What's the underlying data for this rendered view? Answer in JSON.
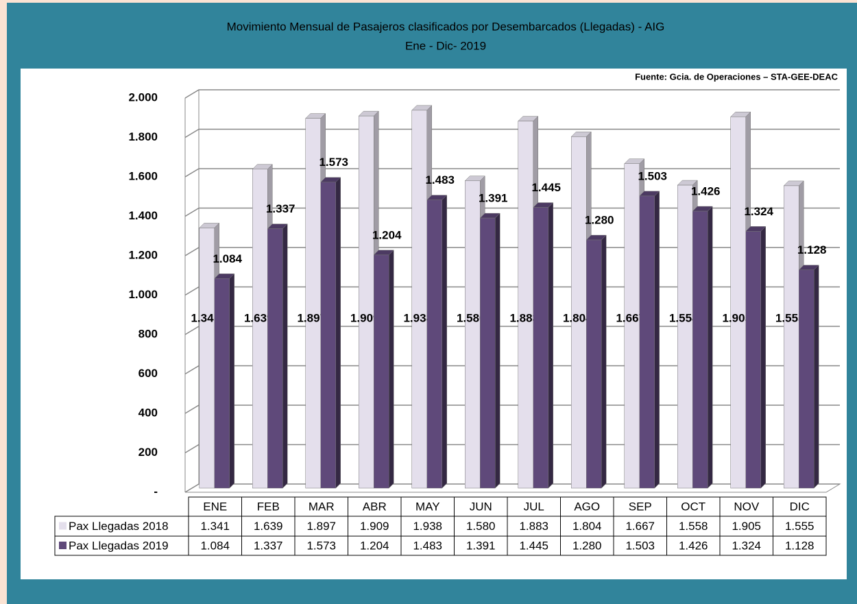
{
  "chart_data": {
    "type": "bar",
    "title": "Movimiento Mensual de Pasajeros clasificados por Desembarcados (Llegadas) - AIG",
    "subtitle": "Ene - Dic-  2019",
    "source": "Fuente: Gcia. de Operaciones – STA-GEE-DEAC",
    "categories": [
      "ENE",
      "FEB",
      "MAR",
      "ABR",
      "MAY",
      "JUN",
      "JUL",
      "AGO",
      "SEP",
      "OCT",
      "NOV",
      "DIC"
    ],
    "series": [
      {
        "name": "Pax Llegadas 2018",
        "color": "#e4dfec",
        "values": [
          1341,
          1639,
          1897,
          1909,
          1938,
          1580,
          1883,
          1804,
          1667,
          1558,
          1905,
          1555
        ],
        "value_labels": [
          "1.341",
          "1.639",
          "1.897",
          "1.909",
          "1.938",
          "1.580",
          "1.883",
          "1.804",
          "1.667",
          "1.558",
          "1.905",
          "1.555"
        ]
      },
      {
        "name": "Pax Llegadas 2019",
        "color": "#5f497a",
        "values": [
          1084,
          1337,
          1573,
          1204,
          1483,
          1391,
          1445,
          1280,
          1503,
          1426,
          1324,
          1128
        ],
        "value_labels": [
          "1.084",
          "1.337",
          "1.573",
          "1.204",
          "1.483",
          "1.391",
          "1.445",
          "1.280",
          "1.503",
          "1.426",
          "1.324",
          "1.128"
        ]
      }
    ],
    "ylim": [
      0,
      2000
    ],
    "yticks": [
      {
        "value": 0,
        "label": "-"
      },
      200,
      400,
      600,
      800,
      {
        "value": 1000,
        "label": "1.000"
      },
      {
        "value": 1200,
        "label": "1.200"
      },
      {
        "value": 1400,
        "label": "1.400"
      },
      {
        "value": 1600,
        "label": "1.600"
      },
      {
        "value": 1800,
        "label": "1.800"
      },
      {
        "value": 2000,
        "label": "2.000"
      }
    ],
    "grid": true
  }
}
